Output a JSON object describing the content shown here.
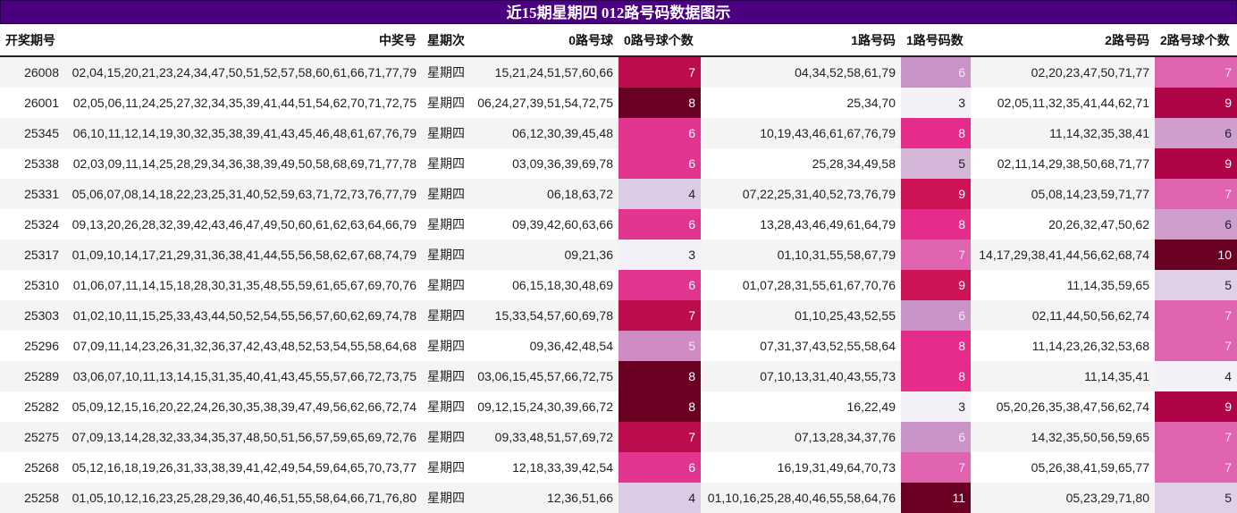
{
  "title": "近15期星期四 012路号码数据图示",
  "columns": [
    "开奖期号",
    "中奖号",
    "星期次",
    "0路号球",
    "0路号球个数",
    "1路号码",
    "1路号码数",
    "2路号码",
    "2路号球个数"
  ],
  "rows": [
    {
      "period": "26008",
      "numbers": "02,04,15,20,21,23,24,34,47,50,51,52,57,58,60,61,66,71,77,79",
      "weekday": "星期四",
      "r0": "15,21,24,51,57,60,66",
      "c0": "7",
      "r1": "04,34,52,58,61,79",
      "c1": "6",
      "r2": "02,20,23,47,50,71,77",
      "c2": "7"
    },
    {
      "period": "26001",
      "numbers": "02,05,06,11,24,25,27,32,34,35,39,41,44,51,54,62,70,71,72,75",
      "weekday": "星期四",
      "r0": "06,24,27,39,51,54,72,75",
      "c0": "8",
      "r1": "25,34,70",
      "c1": "3",
      "r2": "02,05,11,32,35,41,44,62,71",
      "c2": "9"
    },
    {
      "period": "25345",
      "numbers": "06,10,11,12,14,19,30,32,35,38,39,41,43,45,46,48,61,67,76,79",
      "weekday": "星期四",
      "r0": "06,12,30,39,45,48",
      "c0": "6",
      "r1": "10,19,43,46,61,67,76,79",
      "c1": "8",
      "r2": "11,14,32,35,38,41",
      "c2": "6"
    },
    {
      "period": "25338",
      "numbers": "02,03,09,11,14,25,28,29,34,36,38,39,49,50,58,68,69,71,77,78",
      "weekday": "星期四",
      "r0": "03,09,36,39,69,78",
      "c0": "6",
      "r1": "25,28,34,49,58",
      "c1": "5",
      "r2": "02,11,14,29,38,50,68,71,77",
      "c2": "9"
    },
    {
      "period": "25331",
      "numbers": "05,06,07,08,14,18,22,23,25,31,40,52,59,63,71,72,73,76,77,79",
      "weekday": "星期四",
      "r0": "06,18,63,72",
      "c0": "4",
      "r1": "07,22,25,31,40,52,73,76,79",
      "c1": "9",
      "r2": "05,08,14,23,59,71,77",
      "c2": "7"
    },
    {
      "period": "25324",
      "numbers": "09,13,20,26,28,32,39,42,43,46,47,49,50,60,61,62,63,64,66,79",
      "weekday": "星期四",
      "r0": "09,39,42,60,63,66",
      "c0": "6",
      "r1": "13,28,43,46,49,61,64,79",
      "c1": "8",
      "r2": "20,26,32,47,50,62",
      "c2": "6"
    },
    {
      "period": "25317",
      "numbers": "01,09,10,14,17,21,29,31,36,38,41,44,55,56,58,62,67,68,74,79",
      "weekday": "星期四",
      "r0": "09,21,36",
      "c0": "3",
      "r1": "01,10,31,55,58,67,79",
      "c1": "7",
      "r2": "14,17,29,38,41,44,56,62,68,74",
      "c2": "10"
    },
    {
      "period": "25310",
      "numbers": "01,06,07,11,14,15,18,28,30,31,35,48,55,59,61,65,67,69,70,76",
      "weekday": "星期四",
      "r0": "06,15,18,30,48,69",
      "c0": "6",
      "r1": "01,07,28,31,55,61,67,70,76",
      "c1": "9",
      "r2": "11,14,35,59,65",
      "c2": "5"
    },
    {
      "period": "25303",
      "numbers": "01,02,10,11,15,25,33,43,44,50,52,54,55,56,57,60,62,69,74,78",
      "weekday": "星期四",
      "r0": "15,33,54,57,60,69,78",
      "c0": "7",
      "r1": "01,10,25,43,52,55",
      "c1": "6",
      "r2": "02,11,44,50,56,62,74",
      "c2": "7"
    },
    {
      "period": "25296",
      "numbers": "07,09,11,14,23,26,31,32,36,37,42,43,48,52,53,54,55,58,64,68",
      "weekday": "星期四",
      "r0": "09,36,42,48,54",
      "c0": "5",
      "r1": "07,31,37,43,52,55,58,64",
      "c1": "8",
      "r2": "11,14,23,26,32,53,68",
      "c2": "7"
    },
    {
      "period": "25289",
      "numbers": "03,06,07,10,11,13,14,15,31,35,40,41,43,45,55,57,66,72,73,75",
      "weekday": "星期四",
      "r0": "03,06,15,45,57,66,72,75",
      "c0": "8",
      "r1": "07,10,13,31,40,43,55,73",
      "c1": "8",
      "r2": "11,14,35,41",
      "c2": "4"
    },
    {
      "period": "25282",
      "numbers": "05,09,12,15,16,20,22,24,26,30,35,38,39,47,49,56,62,66,72,74",
      "weekday": "星期四",
      "r0": "09,12,15,24,30,39,66,72",
      "c0": "8",
      "r1": "16,22,49",
      "c1": "3",
      "r2": "05,20,26,35,38,47,56,62,74",
      "c2": "9"
    },
    {
      "period": "25275",
      "numbers": "07,09,13,14,28,32,33,34,35,37,48,50,51,56,57,59,65,69,72,76",
      "weekday": "星期四",
      "r0": "09,33,48,51,57,69,72",
      "c0": "7",
      "r1": "07,13,28,34,37,76",
      "c1": "6",
      "r2": "14,32,35,50,56,59,65",
      "c2": "7"
    },
    {
      "period": "25268",
      "numbers": "05,12,16,18,19,26,31,33,38,39,41,42,49,54,59,64,65,70,73,77",
      "weekday": "星期四",
      "r0": "12,18,33,39,42,54",
      "c0": "6",
      "r1": "16,19,31,49,64,70,73",
      "c1": "7",
      "r2": "05,26,38,41,59,65,77",
      "c2": "7"
    },
    {
      "period": "25258",
      "numbers": "01,05,10,12,16,23,25,28,29,36,40,46,51,55,58,64,66,71,76,80",
      "weekday": "星期四",
      "r0": "12,36,51,66",
      "c0": "4",
      "r1": "01,10,16,25,28,40,46,55,58,64,76",
      "c1": "11",
      "r2": "05,23,29,71,80",
      "c2": "5"
    }
  ],
  "heat_colors": {
    "c0": {
      "3": "#f3f0f7",
      "4": "#dccbe4",
      "5": "#cf8bc4",
      "6": "#e2358f",
      "7": "#bb0c4d",
      "8": "#6a0022"
    },
    "c1": {
      "3": "#f3f0f7",
      "5": "#d5b7da",
      "6": "#c993c8",
      "7": "#df63af",
      "8": "#e52c8a",
      "9": "#ce1256",
      "11": "#6a0022"
    },
    "c2": {
      "4": "#f3f0f7",
      "5": "#dfd0e6",
      "6": "#cf9ecd",
      "7": "#df63af",
      "9": "#ae0548",
      "10": "#6a0022"
    }
  },
  "chart_data": {
    "type": "table",
    "title": "近15期星期四 012路号码数据图示",
    "categories": [
      "26008",
      "26001",
      "25345",
      "25338",
      "25331",
      "25324",
      "25317",
      "25310",
      "25303",
      "25296",
      "25289",
      "25282",
      "25275",
      "25268",
      "25258"
    ],
    "series": [
      {
        "name": "0路号球个数",
        "values": [
          7,
          8,
          6,
          6,
          4,
          6,
          3,
          6,
          7,
          5,
          8,
          8,
          7,
          6,
          4
        ]
      },
      {
        "name": "1路号码数",
        "values": [
          6,
          3,
          8,
          5,
          9,
          8,
          7,
          9,
          6,
          8,
          8,
          3,
          6,
          7,
          11
        ]
      },
      {
        "name": "2路号球个数",
        "values": [
          7,
          9,
          6,
          9,
          7,
          6,
          10,
          5,
          7,
          7,
          4,
          9,
          7,
          7,
          5
        ]
      }
    ]
  }
}
